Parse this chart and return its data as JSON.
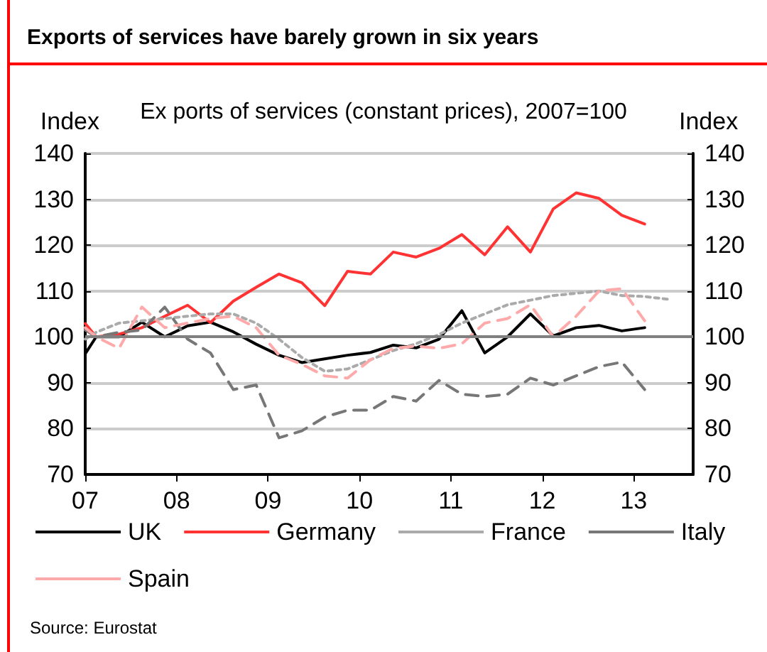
{
  "chart_data": {
    "type": "line",
    "title": "Exports of services have barely grown in six years",
    "subtitle": "Ex ports of services (constant prices), 2007=100",
    "ylabel": "Index",
    "y2label": "Index",
    "x": [
      2007.0,
      2007.12,
      2007.37,
      2007.62,
      2007.87,
      2008.12,
      2008.37,
      2008.62,
      2008.87,
      2009.12,
      2009.37,
      2009.62,
      2009.87,
      2010.12,
      2010.37,
      2010.62,
      2010.87,
      2011.12,
      2011.37,
      2011.62,
      2011.87,
      2012.12,
      2012.37,
      2012.62,
      2012.87,
      2013.12
    ],
    "series": [
      {
        "name": "UK",
        "color": "#000000",
        "line_style": "solid",
        "values": [
          96.3,
          100,
          100,
          103.2,
          100,
          102.4,
          103.2,
          101.1,
          98.4,
          96,
          94.4,
          95.2,
          96,
          96.6,
          98.2,
          97.6,
          99.5,
          105.7,
          96.5,
          100,
          105,
          100.2,
          102,
          102.5,
          101.3,
          102
        ]
      },
      {
        "name": "Germany",
        "color": "#ff3333",
        "line_style": "solid",
        "values": [
          102.9,
          100,
          100.6,
          102,
          104.5,
          106.9,
          103.1,
          107.8,
          110.8,
          113.7,
          111.8,
          106.8,
          114.3,
          113.7,
          118.5,
          117.4,
          119.3,
          122.3,
          117.9,
          124,
          118.5,
          127.9,
          131.4,
          130.2,
          126.5,
          124.6
        ]
      },
      {
        "name": "France",
        "color": "#aaaaaa",
        "line_style": "dotted",
        "x": [
          2007.0,
          2007.12,
          2007.37,
          2007.62,
          2007.87,
          2008.12,
          2008.37,
          2008.62,
          2008.87,
          2009.12,
          2009.37,
          2009.62,
          2009.87,
          2010.12,
          2010.37,
          2010.62,
          2010.87,
          2011.12,
          2011.37,
          2011.62,
          2011.87,
          2012.12,
          2012.37,
          2012.62,
          2012.87,
          2013.12,
          2013.37
        ],
        "values": [
          99.5,
          101,
          103,
          103.5,
          104,
          104.5,
          105,
          105,
          103,
          99.5,
          95.5,
          92.5,
          93,
          95,
          97,
          98.5,
          100.5,
          103,
          105,
          107,
          108,
          109,
          109.5,
          110,
          109,
          108.8,
          108.2
        ]
      },
      {
        "name": "Italy",
        "color": "#777777",
        "line_style": "dashed",
        "values": [
          101.5,
          100,
          101,
          101.5,
          106.5,
          99.5,
          96.5,
          88.5,
          89.5,
          78,
          79.5,
          82.5,
          84,
          84,
          87,
          86,
          90.5,
          87.5,
          87,
          87.5,
          91,
          89.5,
          91.5,
          93.5,
          94.5,
          88.5
        ]
      },
      {
        "name": "Spain",
        "color": "#ffaaaa",
        "line_style": "dashed",
        "values": [
          102,
          100,
          97.5,
          106.5,
          102,
          103,
          104,
          104.5,
          102,
          96,
          94,
          91.5,
          91,
          95,
          97.5,
          98,
          97.5,
          98.5,
          103,
          104,
          107,
          100,
          104.5,
          110,
          110.5,
          103.5
        ]
      }
    ],
    "xlim": [
      2007,
      2013.65
    ],
    "xticks": [
      {
        "value": 2007,
        "label": "07"
      },
      {
        "value": 2008,
        "label": "08"
      },
      {
        "value": 2009,
        "label": "09"
      },
      {
        "value": 2010,
        "label": "10"
      },
      {
        "value": 2011,
        "label": "11"
      },
      {
        "value": 2012,
        "label": "12"
      },
      {
        "value": 2013,
        "label": "13"
      }
    ],
    "ylim": [
      70,
      140
    ],
    "yticks": [
      70,
      80,
      90,
      100,
      110,
      120,
      130,
      140
    ],
    "y2lim": [
      70,
      140
    ],
    "y2ticks": [
      70,
      80,
      90,
      100,
      110,
      120,
      130,
      140
    ],
    "ref_lines": [
      {
        "axis": "y",
        "value": 100,
        "color": "#808080"
      }
    ],
    "grid": "y",
    "legend": "bottom",
    "marker": "none",
    "annotations": [
      "Source: Eurostat"
    ]
  }
}
